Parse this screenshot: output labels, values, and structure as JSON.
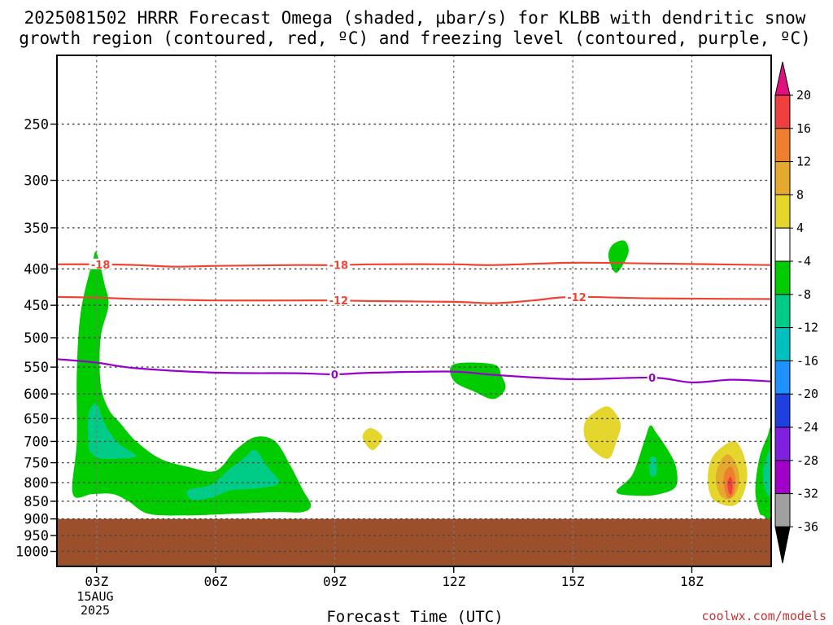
{
  "chart_data": {
    "type": "heatmap",
    "title_line1": "2025081502 HRRR Forecast Omega (shaded, µbar/s) for KLBB with dendritic snow",
    "title_line2": "growth region (contoured, red, ºC) and freezing level (contoured, purple, ºC)",
    "xlabel": "Forecast Time (UTC)",
    "ylabel": "",
    "x_ticks": [
      {
        "value": 3,
        "label": "03Z"
      },
      {
        "value": 6,
        "label": "06Z"
      },
      {
        "value": 9,
        "label": "09Z"
      },
      {
        "value": 12,
        "label": "12Z"
      },
      {
        "value": 15,
        "label": "15Z"
      },
      {
        "value": 18,
        "label": "18Z"
      }
    ],
    "x_sublabels": [
      "15AUG",
      "2025"
    ],
    "xlim": [
      2,
      20
    ],
    "y_ticks": [
      250,
      300,
      350,
      400,
      450,
      500,
      550,
      600,
      650,
      700,
      750,
      800,
      850,
      900,
      950,
      1000
    ],
    "ylim": [
      1050,
      200
    ],
    "y_scale": "log",
    "grid": true,
    "surface_pressure_hPa": 900,
    "surface_color": "#9b4f2a",
    "colorbar": {
      "labels": [
        "20",
        "16",
        "12",
        "8",
        "4",
        "-4",
        "-8",
        "-12",
        "-16",
        "-20",
        "-24",
        "-28",
        "-32",
        "-36"
      ],
      "top_arrow_color": "#e0117f",
      "bottom_arrow_color": "#000000",
      "boxes": [
        "#ef4040",
        "#ee7f2e",
        "#e5a92e",
        "#e5d62e",
        "#ffffff",
        "#00cc00",
        "#00cc88",
        "#00bfbf",
        "#1e90ff",
        "#1f3fdf",
        "#7f1fdf",
        "#a000c8",
        "#a0a0a0"
      ]
    },
    "contours": [
      {
        "name": "-18",
        "color": "#ee4433",
        "points": [
          [
            2,
            394
          ],
          [
            3,
            394
          ],
          [
            4,
            395
          ],
          [
            5,
            397
          ],
          [
            6,
            396
          ],
          [
            8,
            395
          ],
          [
            9,
            395
          ],
          [
            10,
            394
          ],
          [
            12,
            394
          ],
          [
            13,
            395
          ],
          [
            15,
            392
          ],
          [
            17,
            393
          ],
          [
            20,
            395
          ]
        ]
      },
      {
        "name": "-12",
        "color": "#ee4433",
        "points": [
          [
            2,
            438
          ],
          [
            3,
            439
          ],
          [
            4,
            441
          ],
          [
            5,
            442
          ],
          [
            6,
            443
          ],
          [
            8,
            443
          ],
          [
            9,
            443
          ],
          [
            10,
            444
          ],
          [
            12,
            445
          ],
          [
            13,
            447
          ],
          [
            14,
            443
          ],
          [
            15,
            438
          ],
          [
            17,
            440
          ],
          [
            20,
            441
          ]
        ]
      },
      {
        "name": "0",
        "color": "#9900cc",
        "points": [
          [
            2,
            536
          ],
          [
            3,
            542
          ],
          [
            4,
            552
          ],
          [
            6,
            560
          ],
          [
            8,
            561
          ],
          [
            9,
            563
          ],
          [
            10,
            560
          ],
          [
            12,
            558
          ],
          [
            13,
            564
          ],
          [
            15,
            572
          ],
          [
            17,
            569
          ],
          [
            18,
            578
          ],
          [
            19,
            573
          ],
          [
            20,
            576
          ]
        ]
      }
    ],
    "contour_labels": [
      {
        "text": "-18",
        "x": 3.1,
        "y": 394
      },
      {
        "text": "-18",
        "x": 9.1,
        "y": 395
      },
      {
        "text": "-12",
        "x": 9.1,
        "y": 443
      },
      {
        "text": "-12",
        "x": 15.1,
        "y": 438
      },
      {
        "text": "0",
        "x": 9.0,
        "y": 563
      },
      {
        "text": "0",
        "x": 17.0,
        "y": 569
      }
    ],
    "omega_regions": [
      {
        "name": "-4",
        "color": "#00cc00",
        "points": [
          [
            2.4,
            830
          ],
          [
            2.5,
            700
          ],
          [
            2.5,
            560
          ],
          [
            2.6,
            460
          ],
          [
            2.9,
            390
          ],
          [
            3.0,
            380
          ],
          [
            3.2,
            420
          ],
          [
            3.3,
            450
          ],
          [
            3.1,
            500
          ],
          [
            3.1,
            580
          ],
          [
            3.3,
            630
          ],
          [
            3.6,
            660
          ],
          [
            4.0,
            700
          ],
          [
            4.6,
            740
          ],
          [
            5.3,
            760
          ],
          [
            6.0,
            770
          ],
          [
            6.5,
            720
          ],
          [
            7.0,
            690
          ],
          [
            7.5,
            700
          ],
          [
            7.9,
            760
          ],
          [
            8.2,
            820
          ],
          [
            8.4,
            860
          ],
          [
            8.2,
            880
          ],
          [
            7.5,
            880
          ],
          [
            6.5,
            885
          ],
          [
            5.2,
            890
          ],
          [
            4.3,
            885
          ],
          [
            3.8,
            850
          ],
          [
            3.4,
            830
          ],
          [
            2.9,
            830
          ]
        ]
      },
      {
        "name": "-8",
        "color": "#00cc88",
        "points": [
          [
            2.8,
            710
          ],
          [
            2.8,
            640
          ],
          [
            3.0,
            620
          ],
          [
            3.2,
            660
          ],
          [
            3.5,
            700
          ],
          [
            3.8,
            720
          ],
          [
            4.0,
            735
          ],
          [
            3.6,
            740
          ],
          [
            3.1,
            740
          ],
          [
            2.9,
            730
          ]
        ]
      },
      {
        "name": "-8",
        "color": "#00cc88",
        "points": [
          [
            5.3,
            820
          ],
          [
            5.9,
            805
          ],
          [
            6.3,
            770
          ],
          [
            6.7,
            740
          ],
          [
            7.0,
            720
          ],
          [
            7.3,
            760
          ],
          [
            7.6,
            800
          ],
          [
            7.1,
            815
          ],
          [
            6.4,
            820
          ],
          [
            5.9,
            840
          ],
          [
            5.4,
            845
          ]
        ]
      },
      {
        "name": "-4",
        "color": "#00cc00",
        "points": [
          [
            12.0,
            545
          ],
          [
            13.0,
            545
          ],
          [
            13.2,
            565
          ],
          [
            13.3,
            590
          ],
          [
            13.0,
            610
          ],
          [
            12.5,
            595
          ],
          [
            12.0,
            575
          ]
        ]
      },
      {
        "name": "-4",
        "color": "#00cc00",
        "points": [
          [
            16.0,
            370
          ],
          [
            16.3,
            365
          ],
          [
            16.4,
            380
          ],
          [
            16.1,
            405
          ],
          [
            15.9,
            385
          ]
        ]
      },
      {
        "name": "-4",
        "color": "#00cc00",
        "points": [
          [
            16.1,
            825
          ],
          [
            16.5,
            780
          ],
          [
            16.8,
            700
          ],
          [
            16.95,
            665
          ],
          [
            17.1,
            680
          ],
          [
            17.4,
            720
          ],
          [
            17.6,
            760
          ],
          [
            17.6,
            810
          ],
          [
            17.2,
            830
          ],
          [
            16.7,
            835
          ]
        ]
      },
      {
        "name": "-8",
        "color": "#00cc88",
        "points": [
          [
            16.95,
            740
          ],
          [
            17.1,
            740
          ],
          [
            17.1,
            780
          ],
          [
            16.95,
            780
          ]
        ]
      },
      {
        "name": "-4",
        "color": "#00cc00",
        "points": [
          [
            19.7,
            880
          ],
          [
            19.6,
            820
          ],
          [
            19.7,
            740
          ],
          [
            19.9,
            690
          ],
          [
            20.0,
            680
          ],
          [
            20.0,
            890
          ],
          [
            19.8,
            890
          ]
        ]
      },
      {
        "name": "-8",
        "color": "#00cc88",
        "points": [
          [
            19.85,
            820
          ],
          [
            19.8,
            770
          ],
          [
            19.95,
            720
          ],
          [
            20.0,
            720
          ],
          [
            20.0,
            830
          ]
        ]
      },
      {
        "name": "4",
        "color": "#e5d62e",
        "points": [
          [
            9.7,
            690
          ],
          [
            9.9,
            670
          ],
          [
            10.2,
            690
          ],
          [
            9.95,
            720
          ]
        ]
      },
      {
        "name": "4",
        "color": "#e5d62e",
        "points": [
          [
            15.3,
            660
          ],
          [
            15.5,
            640
          ],
          [
            15.9,
            625
          ],
          [
            16.2,
            660
          ],
          [
            16.1,
            700
          ],
          [
            15.9,
            740
          ],
          [
            15.5,
            720
          ],
          [
            15.3,
            690
          ]
        ]
      },
      {
        "name": "4",
        "color": "#e5d62e",
        "points": [
          [
            18.4,
            790
          ],
          [
            18.5,
            740
          ],
          [
            18.8,
            710
          ],
          [
            19.1,
            700
          ],
          [
            19.3,
            730
          ],
          [
            19.4,
            780
          ],
          [
            19.3,
            830
          ],
          [
            19.1,
            860
          ],
          [
            18.8,
            860
          ],
          [
            18.5,
            840
          ]
        ]
      },
      {
        "name": "8",
        "color": "#e5a92e",
        "points": [
          [
            18.6,
            790
          ],
          [
            18.7,
            750
          ],
          [
            18.9,
            730
          ],
          [
            19.1,
            750
          ],
          [
            19.2,
            790
          ],
          [
            19.1,
            830
          ],
          [
            18.9,
            845
          ],
          [
            18.7,
            830
          ]
        ]
      },
      {
        "name": "12",
        "color": "#ee7f2e",
        "points": [
          [
            18.8,
            800
          ],
          [
            18.85,
            770
          ],
          [
            19.0,
            760
          ],
          [
            19.1,
            790
          ],
          [
            19.05,
            830
          ],
          [
            18.9,
            840
          ]
        ]
      },
      {
        "name": "16",
        "color": "#ef4040",
        "points": [
          [
            18.9,
            800
          ],
          [
            18.97,
            785
          ],
          [
            19.03,
            800
          ],
          [
            19.0,
            830
          ],
          [
            18.93,
            825
          ]
        ]
      }
    ]
  },
  "credit": "coolwx.com/models"
}
